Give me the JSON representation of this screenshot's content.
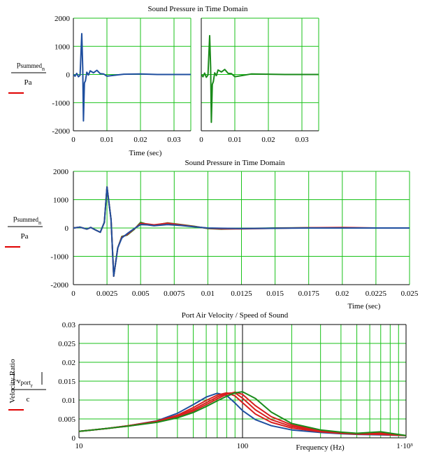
{
  "chart_data": [
    {
      "type": "line",
      "title": "Sound Pressure in Time Domain",
      "xlabel": "Time (sec)",
      "ylabel": {
        "numerator": "p",
        "numerator_sub": "summed",
        "numerator_subsub": "n",
        "denominator": "Pa"
      },
      "xlim": [
        0,
        0.035
      ],
      "ylim": [
        -2000,
        2000
      ],
      "grid": true,
      "x_ticks": [
        "0",
        "0.01",
        "0.02",
        "0.03"
      ],
      "y_ticks": [
        "2000",
        "1000",
        "0",
        "-1000",
        "-2000"
      ],
      "series": [
        {
          "color": "#1f4f9f",
          "x": [
            0,
            0.0005,
            0.001,
            0.0015,
            0.002,
            0.0025,
            0.0028,
            0.003,
            0.0033,
            0.0036,
            0.004,
            0.0045,
            0.005,
            0.006,
            0.007,
            0.008,
            0.009,
            0.01,
            0.012,
            0.015,
            0.02,
            0.025,
            0.03,
            0.035
          ],
          "y": [
            0,
            -60,
            40,
            -80,
            -30,
            1450,
            200,
            -1650,
            -300,
            -220,
            80,
            -20,
            130,
            60,
            150,
            30,
            20,
            -60,
            -30,
            10,
            20,
            0,
            0,
            0
          ]
        }
      ]
    },
    {
      "type": "line",
      "title": "",
      "xlim": [
        0,
        0.035
      ],
      "ylim": [
        -2000,
        2000
      ],
      "grid": true,
      "x_ticks": [
        "0",
        "0.01",
        "0.02",
        "0.03"
      ],
      "series": [
        {
          "color": "#1a8a1a",
          "x": [
            0,
            0.0005,
            0.001,
            0.0015,
            0.002,
            0.0025,
            0.0028,
            0.003,
            0.0033,
            0.0036,
            0.004,
            0.0045,
            0.005,
            0.006,
            0.007,
            0.008,
            0.009,
            0.01,
            0.012,
            0.015,
            0.02,
            0.025,
            0.03,
            0.035
          ],
          "y": [
            0,
            -80,
            50,
            -100,
            -20,
            1380,
            250,
            -1700,
            -350,
            -250,
            60,
            -40,
            160,
            90,
            180,
            40,
            30,
            -80,
            -40,
            20,
            10,
            0,
            0,
            0
          ]
        }
      ]
    },
    {
      "type": "line",
      "title": "Sound Pressure in Time Domain",
      "xlabel": "Time (sec)",
      "ylabel": {
        "numerator": "p",
        "numerator_sub": "summed",
        "numerator_subsub": "n",
        "denominator": "Pa"
      },
      "xlim": [
        0,
        0.025
      ],
      "ylim": [
        -2000,
        2000
      ],
      "grid": true,
      "x_ticks": [
        "0",
        "0.0025",
        "0.005",
        "0.0075",
        "0.01",
        "0.0125",
        "0.015",
        "0.0175",
        "0.02",
        "0.0225",
        "0.025"
      ],
      "y_ticks": [
        "2000",
        "1000",
        "0",
        "-1000",
        "-2000"
      ],
      "series": [
        {
          "color": "#1a8a1a",
          "x": [
            0,
            0.0005,
            0.001,
            0.0013,
            0.0016,
            0.002,
            0.0023,
            0.0025,
            0.0028,
            0.003,
            0.0033,
            0.0036,
            0.004,
            0.0045,
            0.005,
            0.0055,
            0.006,
            0.007,
            0.008,
            0.009,
            0.01,
            0.011,
            0.0125,
            0.015,
            0.0175,
            0.02,
            0.0225,
            0.025
          ],
          "y": [
            0,
            30,
            -40,
            20,
            -60,
            -150,
            200,
            1450,
            300,
            -1700,
            -700,
            -300,
            -250,
            -60,
            200,
            130,
            90,
            180,
            120,
            60,
            -20,
            -40,
            -20,
            0,
            10,
            0,
            0,
            0
          ]
        },
        {
          "color": "#d81e1e",
          "x": [
            0,
            0.0005,
            0.001,
            0.0013,
            0.0016,
            0.002,
            0.0023,
            0.0025,
            0.0028,
            0.003,
            0.0033,
            0.0036,
            0.004,
            0.0045,
            0.005,
            0.0055,
            0.006,
            0.007,
            0.008,
            0.009,
            0.01,
            0.011,
            0.0125,
            0.015,
            0.0175,
            0.02,
            0.0225,
            0.025
          ],
          "y": [
            0,
            30,
            -40,
            20,
            -60,
            -150,
            200,
            1450,
            300,
            -1700,
            -700,
            -320,
            -230,
            -40,
            160,
            140,
            110,
            170,
            110,
            50,
            -10,
            -30,
            -30,
            -10,
            10,
            20,
            0,
            0
          ]
        },
        {
          "color": "#1f4f9f",
          "x": [
            0,
            0.0005,
            0.001,
            0.0013,
            0.0016,
            0.002,
            0.0023,
            0.0025,
            0.0028,
            0.003,
            0.0033,
            0.0036,
            0.004,
            0.0045,
            0.005,
            0.0055,
            0.006,
            0.007,
            0.008,
            0.009,
            0.01,
            0.011,
            0.0125,
            0.015,
            0.0175,
            0.02,
            0.0225,
            0.025
          ],
          "y": [
            0,
            30,
            -40,
            20,
            -60,
            -150,
            200,
            1450,
            300,
            -1700,
            -700,
            -350,
            -200,
            -30,
            120,
            110,
            80,
            120,
            90,
            40,
            0,
            -10,
            -20,
            -10,
            0,
            0,
            0,
            0
          ]
        }
      ]
    },
    {
      "type": "line",
      "title": "Port Air Velocity / Speed of Sound",
      "xlabel": "Frequency (Hz)",
      "ylabel": {
        "outer": "Velocity Ratio",
        "numerator": "v",
        "numerator_sub": "port",
        "numerator_subsub": "r",
        "denominator": "c"
      },
      "xscale": "log",
      "xlim": [
        10,
        1000
      ],
      "ylim": [
        0,
        0.03
      ],
      "grid": true,
      "x_ticks": [
        {
          "value": 10,
          "label": "10"
        },
        {
          "value": 100,
          "label": "100"
        },
        {
          "value": 1000,
          "label": "1·10³"
        }
      ],
      "y_ticks": [
        "0.03",
        "0.025",
        "0.02",
        "0.015",
        "0.01",
        "0.005",
        "0"
      ],
      "series": [
        {
          "color": "#1f4f9f",
          "x": [
            10,
            15,
            20,
            30,
            40,
            50,
            60,
            70,
            80,
            90,
            100,
            120,
            150,
            200,
            300,
            400,
            500,
            700,
            1000
          ],
          "y": [
            0.0017,
            0.0025,
            0.0032,
            0.0045,
            0.0065,
            0.0088,
            0.0108,
            0.0118,
            0.0112,
            0.0092,
            0.0072,
            0.0048,
            0.0032,
            0.0021,
            0.0014,
            0.0011,
            0.0009,
            0.0008,
            0.0006
          ]
        },
        {
          "color": "#d81e1e",
          "x": [
            10,
            15,
            20,
            30,
            40,
            50,
            60,
            70,
            80,
            90,
            100,
            120,
            150,
            200,
            300,
            400,
            500,
            700,
            1000
          ],
          "y": [
            0.0017,
            0.0025,
            0.0032,
            0.0044,
            0.006,
            0.008,
            0.0099,
            0.0113,
            0.0119,
            0.0111,
            0.0093,
            0.0063,
            0.0041,
            0.0026,
            0.0016,
            0.0012,
            0.001,
            0.0009,
            0.0006
          ]
        },
        {
          "color": "#d81e1e",
          "x": [
            10,
            15,
            20,
            30,
            40,
            50,
            60,
            70,
            80,
            90,
            100,
            120,
            150,
            200,
            300,
            400,
            500,
            700,
            1000
          ],
          "y": [
            0.0017,
            0.0025,
            0.0032,
            0.0043,
            0.0058,
            0.0075,
            0.0093,
            0.0108,
            0.0118,
            0.0119,
            0.0105,
            0.0074,
            0.0048,
            0.003,
            0.0018,
            0.0013,
            0.001,
            0.0012,
            0.0006
          ]
        },
        {
          "color": "#d81e1e",
          "x": [
            10,
            15,
            20,
            30,
            40,
            50,
            60,
            70,
            80,
            90,
            100,
            120,
            150,
            200,
            300,
            400,
            500,
            700,
            1000
          ],
          "y": [
            0.0017,
            0.0025,
            0.0031,
            0.0042,
            0.0055,
            0.0071,
            0.0088,
            0.0103,
            0.0115,
            0.0121,
            0.0115,
            0.0085,
            0.0056,
            0.0034,
            0.0019,
            0.0014,
            0.0011,
            0.0013,
            0.0006
          ]
        },
        {
          "color": "#1a8a1a",
          "x": [
            10,
            15,
            20,
            30,
            40,
            50,
            60,
            70,
            80,
            90,
            100,
            120,
            150,
            200,
            300,
            400,
            500,
            700,
            1000
          ],
          "y": [
            0.0017,
            0.0025,
            0.0031,
            0.0041,
            0.0053,
            0.0067,
            0.0083,
            0.0098,
            0.011,
            0.0119,
            0.0122,
            0.0104,
            0.0068,
            0.0038,
            0.0021,
            0.0015,
            0.0012,
            0.0016,
            0.0006
          ]
        }
      ]
    }
  ]
}
